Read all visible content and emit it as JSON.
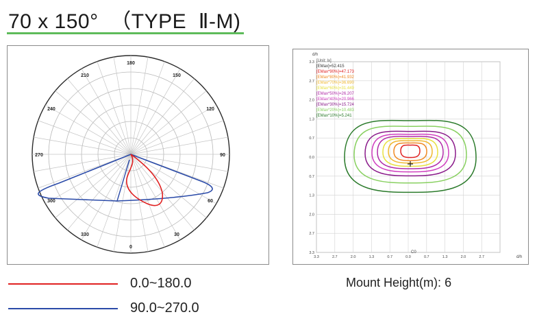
{
  "header": {
    "title": "70 x 150°  （TYPE  Ⅱ-M)"
  },
  "polar": {
    "angle_labels": [
      "0",
      "30",
      "60",
      "90",
      "120",
      "150",
      "180",
      "210",
      "240",
      "270",
      "300",
      "330"
    ],
    "series": [
      {
        "name": "0.0~180.0",
        "color": "#e02020"
      },
      {
        "name": "90.0~270.0",
        "color": "#2a4aa8"
      }
    ]
  },
  "isolux": {
    "unit_label": "[Unit: lx]",
    "emax_label": "[EMax]=52.415",
    "levels": [
      {
        "label": "[EMax*90%]=47.173",
        "color": "#e02020"
      },
      {
        "label": "[EMax*80%]=41.932",
        "color": "#f08a24"
      },
      {
        "label": "[EMax*70%]=36.690",
        "color": "#f0b830"
      },
      {
        "label": "[EMax*60%]=31.449",
        "color": "#e8e040"
      },
      {
        "label": "[EMax*50%]=26.207",
        "color": "#b02aa8"
      },
      {
        "label": "[EMax*40%]=20.966",
        "color": "#d040c0"
      },
      {
        "label": "[EMax*30%]=15.724",
        "color": "#8a1a8a"
      },
      {
        "label": "[EMax*20%]=10.483",
        "color": "#88d060"
      },
      {
        "label": "[EMax*10%]=5.241",
        "color": "#2a7a2a"
      }
    ],
    "x_axis_label": "d/h",
    "y_axis_label": "d/h",
    "x_ticks": [
      "3.3",
      "2.7",
      "2.0",
      "1.3",
      "0.7",
      "0.0",
      "0.7",
      "1.3",
      "2.0",
      "2.7"
    ],
    "y_ticks": [
      "3.3",
      "2.7",
      "2.0",
      "1.3",
      "0.7",
      "0.0",
      "0.7",
      "1.3",
      "2.0",
      "2.7",
      "3.3"
    ],
    "c0_label": "C0",
    "mount_height_label": "Mount Height(m):",
    "mount_height_value": "6"
  }
}
